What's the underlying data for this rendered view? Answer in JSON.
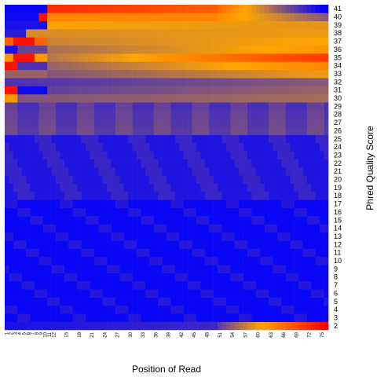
{
  "chart_data": {
    "type": "heatmap",
    "title": "",
    "xlabel": "Position of Read",
    "ylabel": "Phred Quality Score",
    "x_positions_start": 1,
    "x_positions_end": 76,
    "x_tick_labels": [
      "1",
      "2",
      "3",
      "4",
      "5",
      "6",
      "7",
      "8",
      "9",
      "10",
      "11",
      "12",
      "15",
      "18",
      "21",
      "24",
      "27",
      "30",
      "33",
      "36",
      "39",
      "42",
      "45",
      "48",
      "51",
      "54",
      "57",
      "60",
      "63",
      "66",
      "69",
      "72",
      "75"
    ],
    "y_scores": [
      2,
      3,
      4,
      5,
      6,
      7,
      8,
      9,
      10,
      11,
      12,
      13,
      14,
      15,
      16,
      17,
      18,
      19,
      20,
      21,
      22,
      23,
      24,
      25,
      26,
      27,
      28,
      29,
      30,
      31,
      32,
      33,
      34,
      35,
      36,
      37,
      38,
      39,
      40,
      41
    ],
    "y_tick_labels": [
      "2",
      "3",
      "4",
      "5",
      "6",
      "7",
      "8",
      "9",
      "10",
      "11",
      "12",
      "13",
      "14",
      "15",
      "16",
      "17",
      "18",
      "19",
      "20",
      "21",
      "22",
      "23",
      "24",
      "25",
      "26",
      "27",
      "28",
      "29",
      "30",
      "31",
      "32",
      "33",
      "34",
      "35",
      "36",
      "37",
      "38",
      "39",
      "40",
      "41"
    ],
    "color_scale": [
      "#0000ff",
      "#ffa500",
      "#ff0000"
    ],
    "grid": false,
    "legend": "none"
  }
}
